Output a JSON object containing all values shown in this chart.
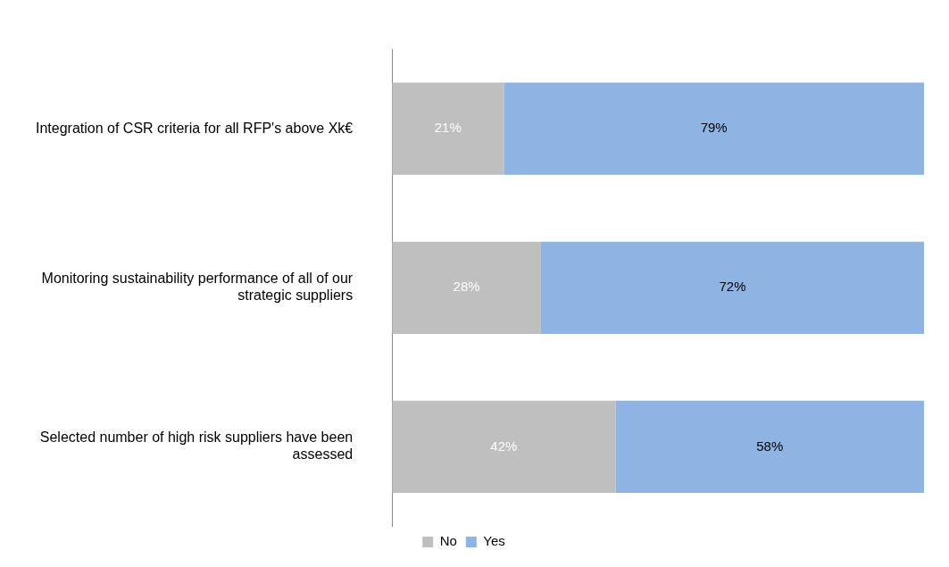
{
  "chart_data": {
    "type": "bar",
    "orientation": "horizontal",
    "stacked": true,
    "legend": "bottom",
    "categories": [
      "Integration of CSR criteria for all RFP's above Xk€",
      "Monitoring sustainability performance of all of our strategic suppliers",
      "Selected number of high risk suppliers have been assessed"
    ],
    "series": [
      {
        "name": "No",
        "color": "#bfbfbf",
        "values": [
          21,
          28,
          42
        ],
        "value_labels": [
          "21%",
          "28%",
          "42%"
        ]
      },
      {
        "name": "Yes",
        "color": "#8db4e2",
        "values": [
          79,
          72,
          58
        ],
        "value_labels": [
          "79%",
          "72%",
          "58%"
        ]
      }
    ]
  }
}
